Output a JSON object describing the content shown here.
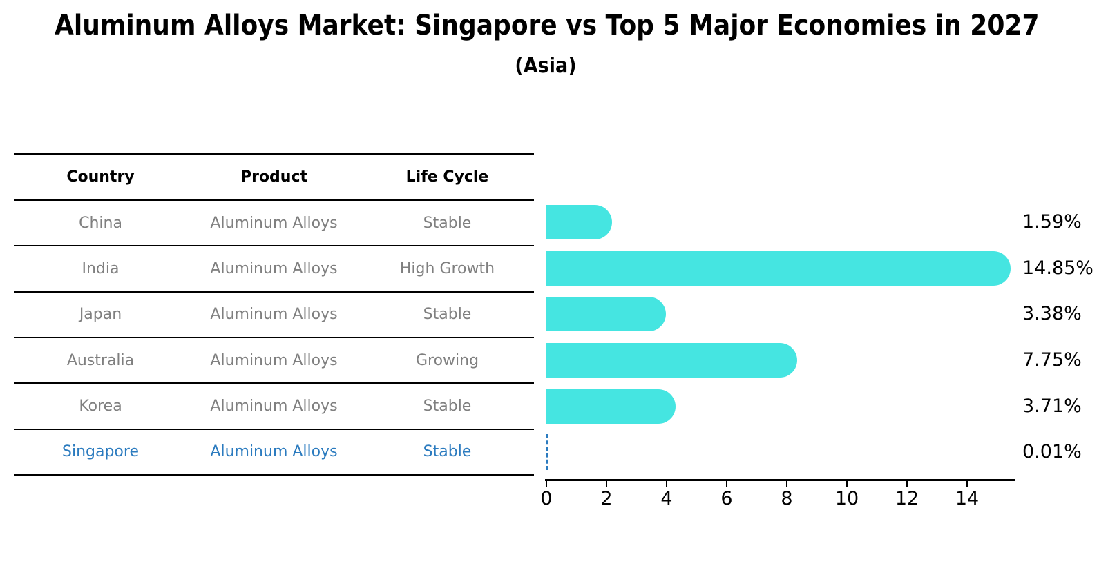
{
  "title": "Aluminum Alloys Market: Singapore vs Top 5 Major Economies in 2027",
  "subtitle": "(Asia)",
  "table": {
    "headers": [
      "Country",
      "Product",
      "Life Cycle"
    ],
    "rows": [
      {
        "country": "China",
        "product": "Aluminum Alloys",
        "life_cycle": "Stable",
        "highlight": false
      },
      {
        "country": "India",
        "product": "Aluminum Alloys",
        "life_cycle": "High Growth",
        "highlight": false
      },
      {
        "country": "Japan",
        "product": "Aluminum Alloys",
        "life_cycle": "Stable",
        "highlight": false
      },
      {
        "country": "Australia",
        "product": "Aluminum Alloys",
        "life_cycle": "Growing",
        "highlight": false
      },
      {
        "country": "Korea",
        "product": "Aluminum Alloys",
        "life_cycle": "Stable",
        "highlight": false
      },
      {
        "country": "Singapore",
        "product": "Aluminum Alloys",
        "life_cycle": "Stable",
        "highlight": true
      }
    ]
  },
  "chart_data": {
    "type": "bar",
    "orientation": "horizontal",
    "title": "Aluminum Alloys Market: Singapore vs Top 5 Major Economies in 2027 (Asia)",
    "xlabel": "",
    "ylabel": "",
    "categories": [
      "China",
      "India",
      "Japan",
      "Australia",
      "Korea",
      "Singapore"
    ],
    "values": [
      1.59,
      14.85,
      3.38,
      7.75,
      3.71,
      0.01
    ],
    "value_labels": [
      "1.59%",
      "14.85%",
      "3.38%",
      "7.75%",
      "3.71%",
      "0.01%"
    ],
    "x_ticks": [
      0,
      2,
      4,
      6,
      8,
      10,
      12,
      14
    ],
    "xlim": [
      0,
      15.6
    ],
    "grid": false,
    "legend": "none",
    "bar_color": "#45E5E1",
    "highlight_bar_style": "dashed-outline",
    "highlight_color": "#2b7bbf",
    "text_color": "#000000",
    "muted_text_color": "#7f7f7f"
  }
}
